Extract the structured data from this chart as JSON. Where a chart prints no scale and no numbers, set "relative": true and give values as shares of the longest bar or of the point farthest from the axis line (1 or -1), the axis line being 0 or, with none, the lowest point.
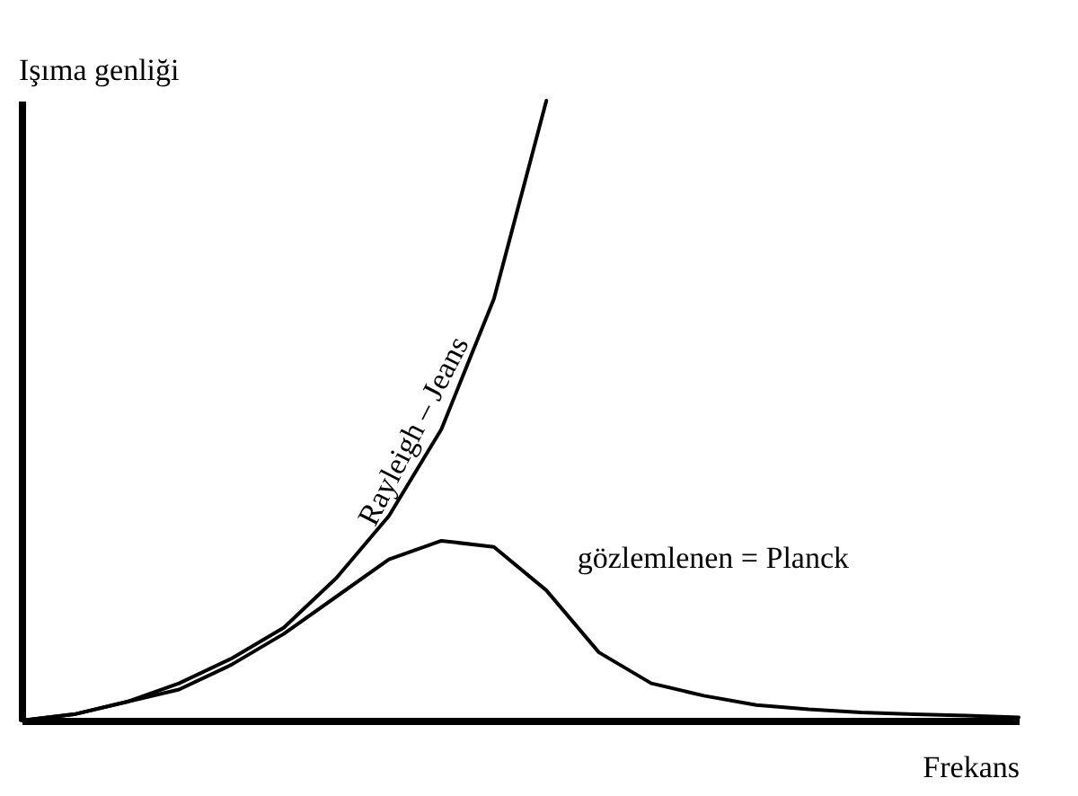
{
  "chart_data": {
    "type": "line",
    "relative": true,
    "xlabel": "Frekans",
    "ylabel": "Işıma genliği",
    "categories": [
      null,
      null,
      null,
      null,
      null,
      null,
      null,
      null,
      null,
      null,
      null,
      null,
      null,
      null,
      null,
      null,
      null,
      null,
      null,
      null
    ],
    "series": [
      {
        "name": "Rayleigh – Jeans",
        "color": "#000000",
        "values": [
          0,
          0.01,
          0.03,
          0.06,
          0.1,
          0.15,
          0.23,
          0.33,
          0.47,
          0.68,
          1,
          null,
          null,
          null,
          null,
          null,
          null,
          null,
          null,
          null
        ]
      },
      {
        "name": "gözlemlenen = Planck",
        "color": "#000000",
        "values": [
          0,
          0.01,
          0.03,
          0.05,
          0.09,
          0.14,
          0.2,
          0.26,
          0.29,
          0.28,
          0.21,
          0.11,
          0.06,
          0.04,
          0.025,
          0.018,
          0.013,
          0.01,
          0.008,
          0.005
        ]
      }
    ],
    "grid": false,
    "marker": "none",
    "line_style": "solid"
  }
}
